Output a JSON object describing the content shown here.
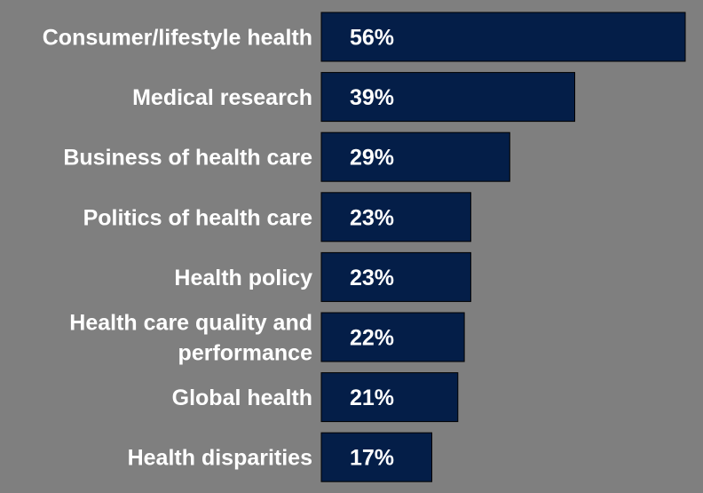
{
  "chart_data": {
    "type": "bar",
    "orientation": "horizontal",
    "categories": [
      [
        "Consumer/lifestyle health"
      ],
      [
        "Medical research"
      ],
      [
        "Business of health care"
      ],
      [
        "Politics of health care"
      ],
      [
        "Health policy"
      ],
      [
        "Health care quality and",
        "performance"
      ],
      [
        "Global health"
      ],
      [
        "Health disparities"
      ]
    ],
    "values": [
      56,
      39,
      29,
      23,
      23,
      22,
      21,
      17
    ],
    "data_labels": [
      "56%",
      "39%",
      "29%",
      "23%",
      "23%",
      "22%",
      "21%",
      "17%"
    ],
    "title": "",
    "xlabel": "",
    "ylabel": "",
    "xlim": [
      0,
      56
    ],
    "grid": false,
    "legend": "none",
    "colors": {
      "background": "#7f7f7f",
      "bar": "#041e48",
      "bar_border": "#000000",
      "text": "#ffffff"
    }
  }
}
